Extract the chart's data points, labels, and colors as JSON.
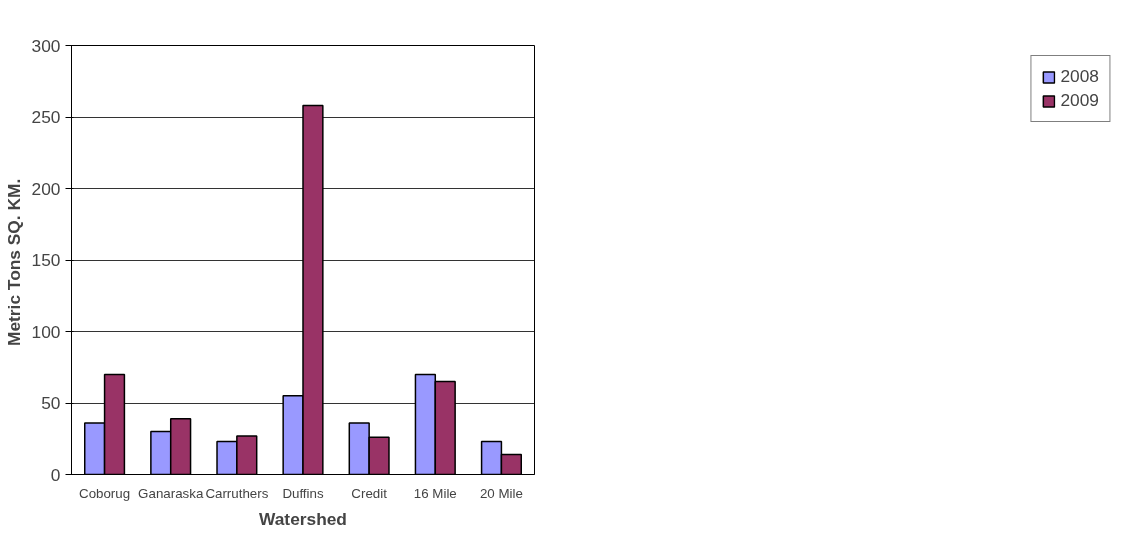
{
  "chart_data": {
    "type": "bar",
    "xlabel": "Watershed",
    "ylabel": "Metric Tons  SQ. KM.",
    "categories": [
      "Coborug",
      "Ganaraska",
      "Carruthers",
      "Duffins",
      "Credit",
      "16 Mile",
      "20 Mile"
    ],
    "series": [
      {
        "name": "2008",
        "color": "#9999ff",
        "values": [
          36,
          30,
          23,
          55,
          36,
          70,
          23
        ]
      },
      {
        "name": "2009",
        "color": "#993366",
        "values": [
          70,
          39,
          27,
          258,
          26,
          65,
          14
        ]
      }
    ],
    "ylim": [
      0,
      300
    ],
    "yticks": [
      0,
      50,
      100,
      150,
      200,
      250,
      300
    ],
    "grid": "y",
    "legend": "right"
  }
}
